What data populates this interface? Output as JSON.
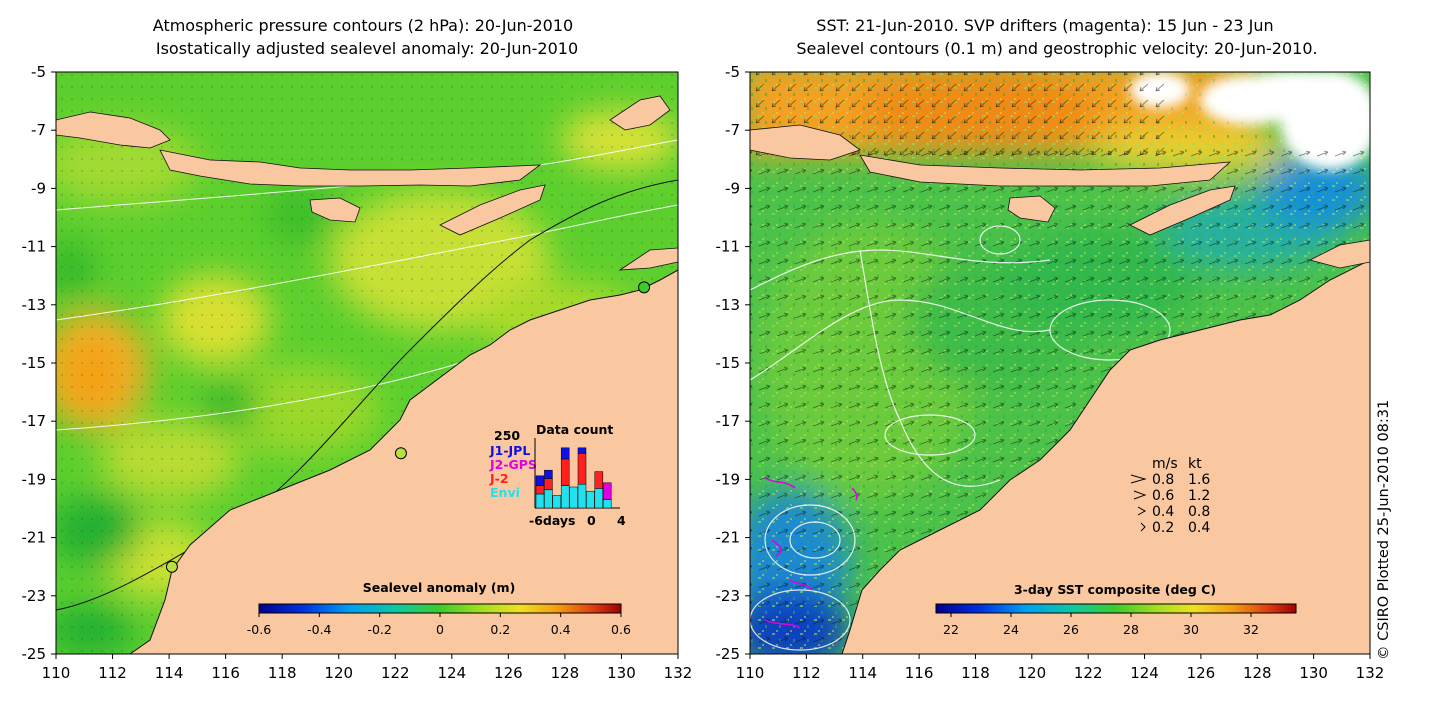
{
  "colors": {
    "land": "#f9c8a0",
    "sea_green": "#5ccf2e",
    "sst_green": "#4cc24a",
    "sst_orange": "#f4a020",
    "drifter": "#e000e0"
  },
  "chart_data": [
    {
      "type": "heatmap",
      "title_line1": "Atmospheric pressure contours (2 hPa): 20-Jun-2010",
      "title_line2": "Isostatically adjusted sealevel anomaly: 20-Jun-2010",
      "xlim": [
        110,
        132
      ],
      "ylim": [
        -25,
        -5
      ],
      "x_ticks": [
        "110",
        "112",
        "114",
        "116",
        "118",
        "120",
        "122",
        "124",
        "126",
        "128",
        "130",
        "132"
      ],
      "y_ticks": [
        "-5",
        "-7",
        "-9",
        "-11",
        "-13",
        "-15",
        "-17",
        "-19",
        "-21",
        "-23",
        "-25"
      ],
      "colorbar": {
        "label": "Sealevel anomaly (m)",
        "range": [
          -0.6,
          0.6
        ],
        "ticks": [
          "-0.6",
          "-0.4",
          "-0.2",
          "0",
          "0.2",
          "0.4",
          "0.6"
        ]
      },
      "tide_gauges": [
        {
          "lon": 114.1,
          "lat": -22.0
        },
        {
          "lon": 122.2,
          "lat": -18.1
        },
        {
          "lon": 130.8,
          "lat": -12.4
        }
      ],
      "data_count": {
        "title": "Data count",
        "ymax_label": "250",
        "legend": [
          {
            "name": "J1-JPL",
            "color": "#1010e0"
          },
          {
            "name": "J2-GPS",
            "color": "#e000e0"
          },
          {
            "name": "J-2",
            "color": "#ff2020"
          },
          {
            "name": "Envi",
            "color": "#22e0ee"
          }
        ],
        "x_axis_label": "-6days",
        "x_ticks": [
          "0",
          "4"
        ],
        "days": [
          -6,
          -5,
          -4,
          -3,
          -2,
          -1,
          0,
          1,
          2
        ],
        "series": [
          {
            "name": "Envi",
            "values": [
              50,
              65,
              45,
              80,
              75,
              85,
              60,
              70,
              30
            ]
          },
          {
            "name": "J-2",
            "values": [
              30,
              40,
              0,
              95,
              0,
              110,
              0,
              60,
              0
            ]
          },
          {
            "name": "J2-GPS",
            "values": [
              0,
              0,
              0,
              0,
              0,
              0,
              0,
              0,
              60
            ]
          },
          {
            "name": "J1-JPL",
            "values": [
              35,
              30,
              0,
              40,
              0,
              20,
              0,
              0,
              0
            ]
          }
        ]
      }
    },
    {
      "type": "heatmap",
      "title_line1": "SST: 21-Jun-2010. SVP drifters (magenta): 15 Jun - 23 Jun",
      "title_line2": "Sealevel contours (0.1 m) and geostrophic velocity: 20-Jun-2010.",
      "xlim": [
        110,
        132
      ],
      "ylim": [
        -25,
        -5
      ],
      "x_ticks": [
        "110",
        "112",
        "114",
        "116",
        "118",
        "120",
        "122",
        "124",
        "126",
        "128",
        "130",
        "132"
      ],
      "y_ticks": [
        "-5",
        "-7",
        "-9",
        "-11",
        "-13",
        "-15",
        "-17",
        "-19",
        "-21",
        "-23",
        "-25"
      ],
      "colorbar": {
        "label": "3-day SST composite (deg C)",
        "range": [
          21.5,
          33.5
        ],
        "ticks": [
          "22",
          "24",
          "26",
          "28",
          "30",
          "32"
        ]
      },
      "velocity_key": {
        "headers": [
          "m/s",
          "kt"
        ],
        "rows": [
          {
            "ms": "0.8",
            "kt": "1.6"
          },
          {
            "ms": "0.6",
            "kt": "1.2"
          },
          {
            "ms": "0.4",
            "kt": "0.8"
          },
          {
            "ms": "0.2",
            "kt": "0.4"
          }
        ]
      }
    }
  ],
  "credit": "© CSIRO Plotted 25-Jun-2010 08:31"
}
